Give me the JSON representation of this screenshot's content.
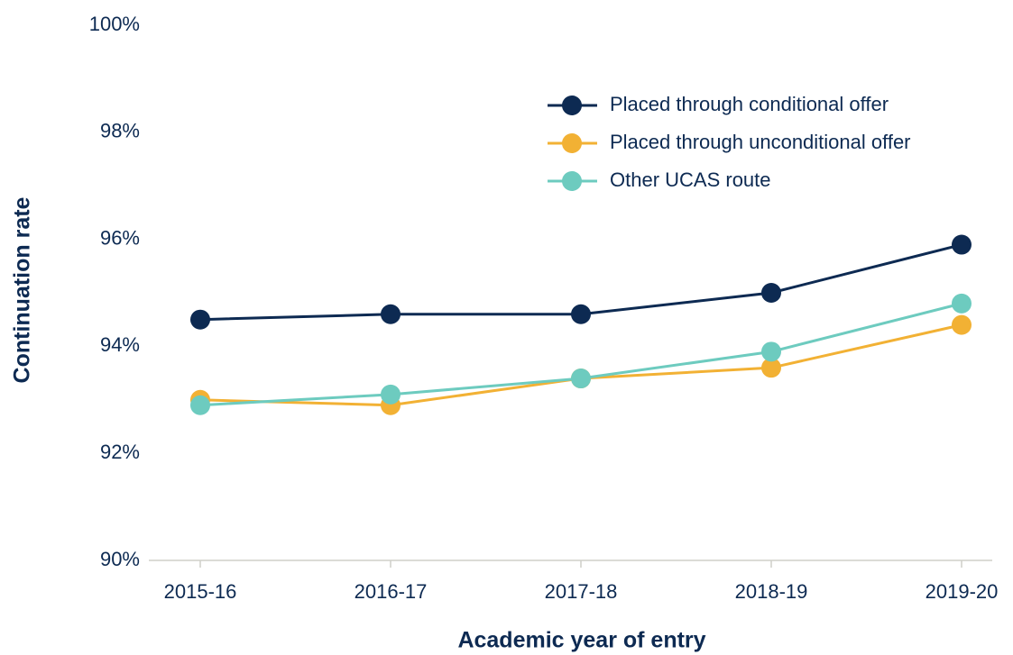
{
  "chart_data": {
    "type": "line",
    "x_label": "Academic year of entry",
    "y_label": "Continuation rate",
    "categories": [
      "2015-16",
      "2016-17",
      "2017-18",
      "2018-19",
      "2019-20"
    ],
    "series": [
      {
        "name": "Placed through conditional offer",
        "color": "#0d2a52",
        "values": [
          94.5,
          94.6,
          94.6,
          95.0,
          95.9
        ]
      },
      {
        "name": "Placed through unconditional offer",
        "color": "#f2b134",
        "values": [
          93.0,
          92.9,
          93.4,
          93.6,
          94.4
        ]
      },
      {
        "name": "Other UCAS route",
        "color": "#6dcbbf",
        "values": [
          92.9,
          93.1,
          93.4,
          93.9,
          94.8
        ]
      }
    ],
    "ylim": [
      90,
      100
    ],
    "yticks": [
      {
        "value": 90,
        "label": "90%"
      },
      {
        "value": 92,
        "label": "92%"
      },
      {
        "value": 94,
        "label": "94%"
      },
      {
        "value": 96,
        "label": "96%"
      },
      {
        "value": 98,
        "label": "98%"
      },
      {
        "value": 100,
        "label": "100%"
      }
    ],
    "grid": false,
    "legend": "top-right"
  }
}
